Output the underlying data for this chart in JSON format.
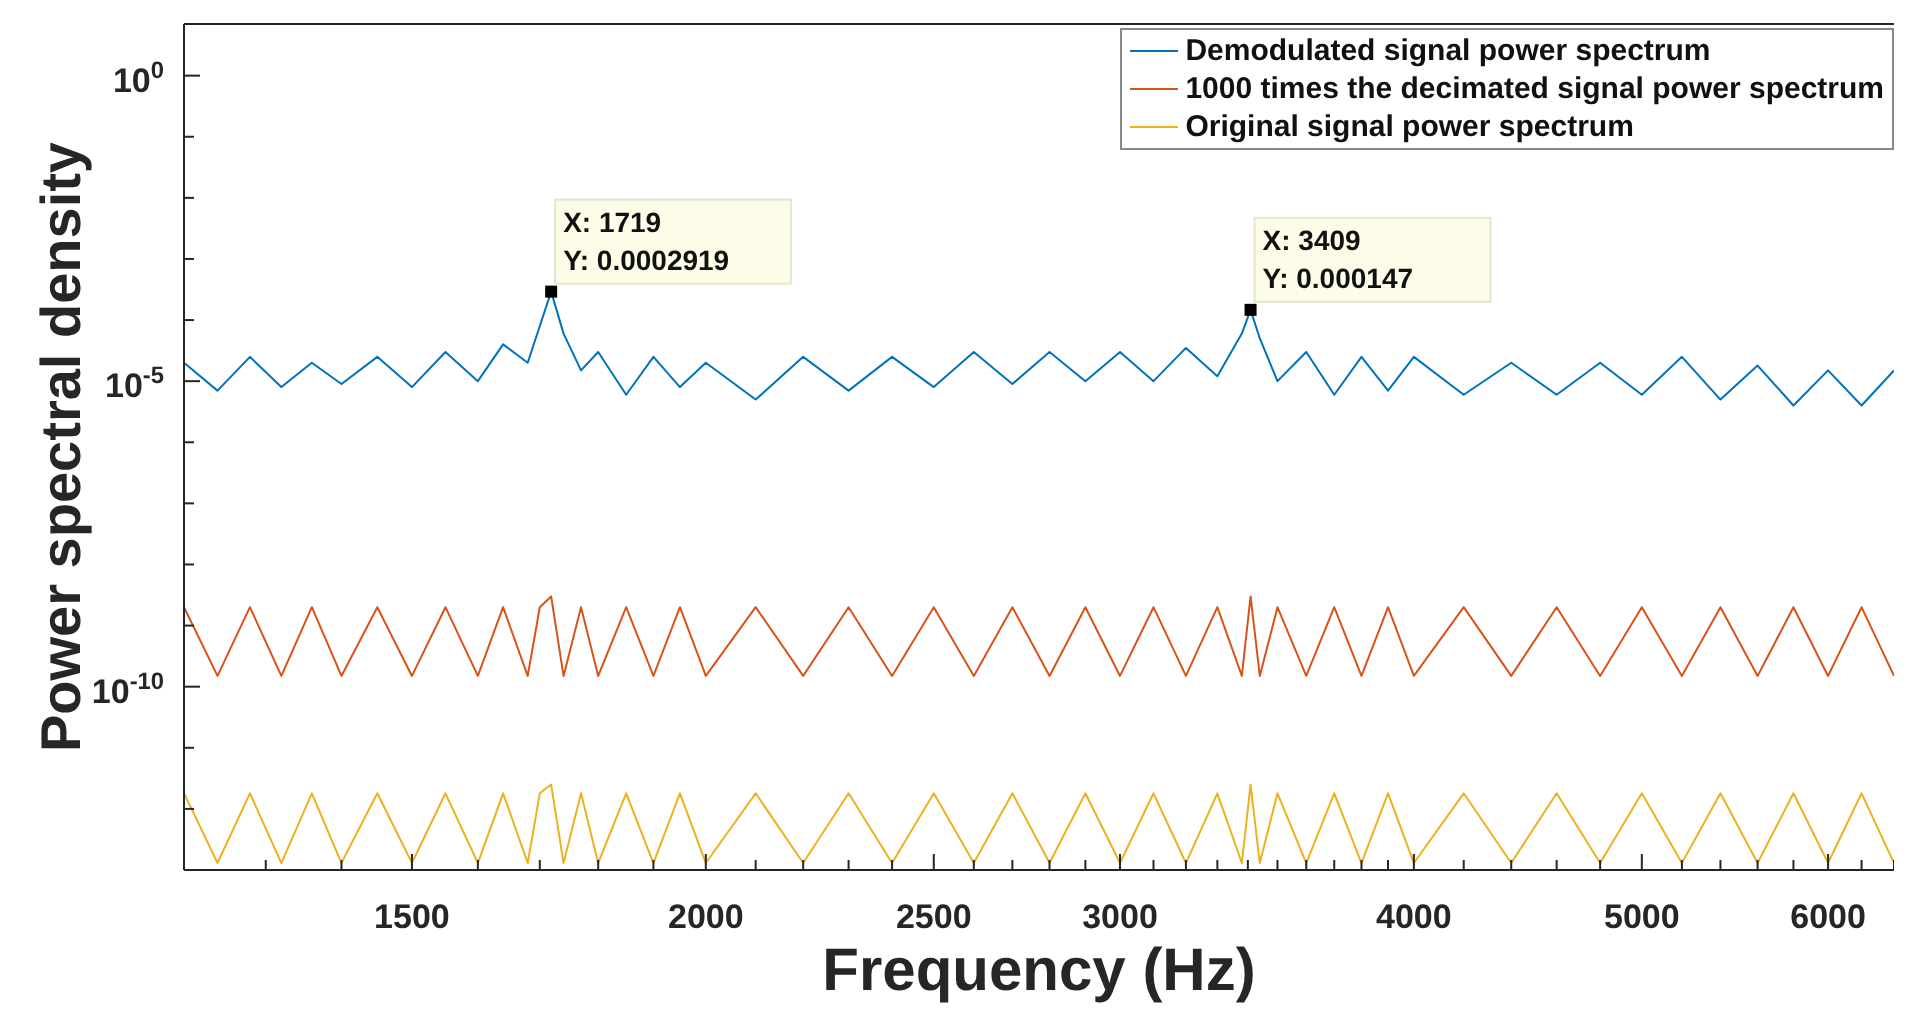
{
  "chart_data": {
    "type": "line",
    "xlabel": "Frequency (Hz)",
    "ylabel": "Power spectral density",
    "log": "xy",
    "grid": false,
    "legend": "top right",
    "marker": "none",
    "line_style": "solid",
    "xlim": [
      1200,
      6400
    ],
    "ylim": [
      1e-13,
      7
    ],
    "xticks": [
      {
        "value": 1200,
        "label": null
      },
      {
        "value": 1300,
        "label": null
      },
      {
        "value": 1400,
        "label": null
      },
      1500,
      {
        "value": 1600,
        "label": null
      },
      {
        "value": 1700,
        "label": null
      },
      {
        "value": 1800,
        "label": null
      },
      {
        "value": 1900,
        "label": null
      },
      2000,
      {
        "value": 2100,
        "label": null
      },
      {
        "value": 2200,
        "label": null
      },
      {
        "value": 2300,
        "label": null
      },
      {
        "value": 2400,
        "label": null
      },
      2500,
      {
        "value": 2600,
        "label": null
      },
      {
        "value": 2700,
        "label": null
      },
      {
        "value": 2800,
        "label": null
      },
      {
        "value": 2900,
        "label": null
      },
      3000,
      {
        "value": 3100,
        "label": null
      },
      {
        "value": 3200,
        "label": null
      },
      {
        "value": 3300,
        "label": null
      },
      {
        "value": 3400,
        "label": null
      },
      {
        "value": 3500,
        "label": null
      },
      {
        "value": 3600,
        "label": null
      },
      {
        "value": 3700,
        "label": null
      },
      {
        "value": 3800,
        "label": null
      },
      {
        "value": 3900,
        "label": null
      },
      4000,
      {
        "value": 4200,
        "label": null
      },
      {
        "value": 4400,
        "label": null
      },
      {
        "value": 4600,
        "label": null
      },
      {
        "value": 4800,
        "label": null
      },
      5000,
      {
        "value": 5200,
        "label": null
      },
      {
        "value": 5400,
        "label": null
      },
      {
        "value": 5600,
        "label": null
      },
      {
        "value": 5800,
        "label": null
      },
      6000,
      {
        "value": 6200,
        "label": null
      },
      {
        "value": 6400,
        "label": null
      }
    ],
    "yticks": [
      {
        "value": 1,
        "label": "10$^{0}$"
      },
      {
        "value": 0.1,
        "label": null
      },
      {
        "value": 0.01,
        "label": null
      },
      {
        "value": 0.001,
        "label": null
      },
      {
        "value": 0.0001,
        "label": null
      },
      {
        "value": 1e-05,
        "label": "10$^{-5}$"
      },
      {
        "value": 1e-06,
        "label": null
      },
      {
        "value": 1e-07,
        "label": null
      },
      {
        "value": 1e-08,
        "label": null
      },
      {
        "value": 1e-09,
        "label": null
      },
      {
        "value": 1e-10,
        "label": "10$^{-10}$"
      },
      {
        "value": 1e-11,
        "label": null
      },
      {
        "value": 1e-12,
        "label": null
      }
    ],
    "x": [
      1200,
      1240,
      1280,
      1320,
      1360,
      1400,
      1450,
      1500,
      1550,
      1600,
      1640,
      1680,
      1700,
      1719,
      1740,
      1770,
      1800,
      1850,
      1900,
      1950,
      2000,
      2100,
      2200,
      2300,
      2400,
      2500,
      2600,
      2700,
      2800,
      2900,
      3000,
      3100,
      3200,
      3300,
      3380,
      3409,
      3440,
      3500,
      3600,
      3700,
      3800,
      3900,
      4000,
      4200,
      4400,
      4600,
      4800,
      5000,
      5200,
      5400,
      5600,
      5800,
      6000,
      6200,
      6400
    ],
    "series": [
      {
        "name": "Demodulated signal power spectrum",
        "color": "#0072bd",
        "values": [
          2e-05,
          7e-06,
          2.5e-05,
          8e-06,
          2e-05,
          9e-06,
          2.5e-05,
          8e-06,
          3e-05,
          1e-05,
          4e-05,
          2e-05,
          8e-05,
          0.0002919,
          6e-05,
          1.5e-05,
          3e-05,
          6e-06,
          2.5e-05,
          8e-06,
          2e-05,
          5e-06,
          2.5e-05,
          7e-06,
          2.5e-05,
          8e-06,
          3e-05,
          9e-06,
          3e-05,
          1e-05,
          3e-05,
          1e-05,
          3.5e-05,
          1.2e-05,
          6e-05,
          0.000147,
          5e-05,
          1e-05,
          3e-05,
          6e-06,
          2.5e-05,
          7e-06,
          2.5e-05,
          6e-06,
          2e-05,
          6e-06,
          2e-05,
          6e-06,
          2.5e-05,
          5e-06,
          1.8e-05,
          4e-06,
          1.5e-05,
          4e-06,
          1.5e-05
        ]
      },
      {
        "name": "1000 times the decimated signal power spectrum",
        "color": "#d95319",
        "values": [
          2e-09,
          1.5e-10,
          2e-09,
          1.5e-10,
          2e-09,
          1.5e-10,
          2e-09,
          1.5e-10,
          2e-09,
          1.5e-10,
          2e-09,
          1.5e-10,
          2e-09,
          3e-09,
          1.5e-10,
          2e-09,
          1.5e-10,
          2e-09,
          1.5e-10,
          2e-09,
          1.5e-10,
          2e-09,
          1.5e-10,
          2e-09,
          1.5e-10,
          2e-09,
          1.5e-10,
          2e-09,
          1.5e-10,
          2e-09,
          1.5e-10,
          2e-09,
          1.5e-10,
          2e-09,
          1.5e-10,
          3e-09,
          1.5e-10,
          2e-09,
          1.5e-10,
          2e-09,
          1.5e-10,
          2e-09,
          1.5e-10,
          2e-09,
          1.5e-10,
          2e-09,
          1.5e-10,
          2e-09,
          1.5e-10,
          2e-09,
          1.5e-10,
          2e-09,
          1.5e-10,
          2e-09,
          1.5e-10
        ]
      },
      {
        "name": "Original signal power spectrum",
        "color": "#edb120",
        "values": [
          1.8e-12,
          1.3e-13,
          1.8e-12,
          1.3e-13,
          1.8e-12,
          1.3e-13,
          1.8e-12,
          1.3e-13,
          1.8e-12,
          1.3e-13,
          1.8e-12,
          1.3e-13,
          1.8e-12,
          2.5e-12,
          1.3e-13,
          1.8e-12,
          1.3e-13,
          1.8e-12,
          1.3e-13,
          1.8e-12,
          1.3e-13,
          1.8e-12,
          1.3e-13,
          1.8e-12,
          1.3e-13,
          1.8e-12,
          1.3e-13,
          1.8e-12,
          1.3e-13,
          1.8e-12,
          1.3e-13,
          1.8e-12,
          1.3e-13,
          1.8e-12,
          1.3e-13,
          2.5e-12,
          1.3e-13,
          1.8e-12,
          1.3e-13,
          1.8e-12,
          1.3e-13,
          1.8e-12,
          1.3e-13,
          1.8e-12,
          1.3e-13,
          1.8e-12,
          1.3e-13,
          1.8e-12,
          1.3e-13,
          1.8e-12,
          1.3e-13,
          1.8e-12,
          1.3e-13,
          1.8e-12,
          1.3e-13
        ]
      }
    ],
    "annotations": [
      {
        "text": "X: 1719\nY: 0.0002919",
        "x": 1719,
        "y": 0.0002919
      },
      {
        "text": "X: 3409\nY: 0.000147",
        "x": 3409,
        "y": 0.000147
      }
    ]
  }
}
